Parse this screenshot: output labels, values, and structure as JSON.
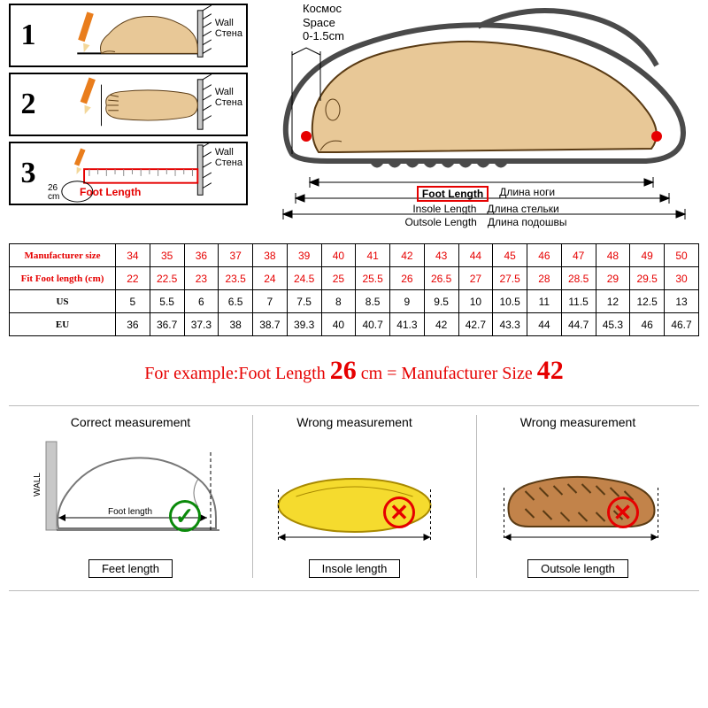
{
  "colors": {
    "red": "#e60000",
    "orange": "#e97d1c",
    "foot_fill": "#e8c897",
    "foot_stroke": "#5a3b14",
    "insole_fill": "#f5db2e",
    "insole_stroke": "#a88900",
    "outsole_fill": "#c2834a",
    "outsole_stroke": "#5a3b14",
    "wall_fill": "#c8c8c8",
    "check_green": "#0a8a0a",
    "border": "#000000"
  },
  "steps": {
    "wall_en": "Wall",
    "wall_ru": "Стена",
    "nums": [
      "1",
      "2",
      "3"
    ],
    "step3": {
      "foot_length_label": "Foot Length",
      "cm_callout": "26\ncm"
    }
  },
  "shoe_diagram": {
    "space_ru": "Космос",
    "space_en": "Space",
    "space_range": "0-1.5cm",
    "lengths": [
      {
        "en": "Foot Length",
        "ru": "Длина ноги",
        "key": "foot"
      },
      {
        "en": "Insole Length",
        "ru": "Длина стельки",
        "key": "insole"
      },
      {
        "en": "Outsole Length",
        "ru": "Длина подошвы",
        "key": "outsole"
      }
    ]
  },
  "size_table": {
    "row_labels": [
      "Manufacturer size",
      "Fit Foot length (cm)",
      "US",
      "EU"
    ],
    "red_rows": [
      0,
      1
    ],
    "columns": [
      "34",
      "35",
      "36",
      "37",
      "38",
      "39",
      "40",
      "41",
      "42",
      "43",
      "44",
      "45",
      "46",
      "47",
      "48",
      "49",
      "50"
    ],
    "rows": [
      [
        "34",
        "35",
        "36",
        "37",
        "38",
        "39",
        "40",
        "41",
        "42",
        "43",
        "44",
        "45",
        "46",
        "47",
        "48",
        "49",
        "50"
      ],
      [
        "22",
        "22.5",
        "23",
        "23.5",
        "24",
        "24.5",
        "25",
        "25.5",
        "26",
        "26.5",
        "27",
        "27.5",
        "28",
        "28.5",
        "29",
        "29.5",
        "30"
      ],
      [
        "5",
        "5.5",
        "6",
        "6.5",
        "7",
        "7.5",
        "8",
        "8.5",
        "9",
        "9.5",
        "10",
        "10.5",
        "11",
        "11.5",
        "12",
        "12.5",
        "13"
      ],
      [
        "36",
        "36.7",
        "37.3",
        "38",
        "38.7",
        "39.3",
        "40",
        "40.7",
        "41.3",
        "42",
        "42.7",
        "43.3",
        "44",
        "44.7",
        "45.3",
        "46",
        "46.7"
      ]
    ]
  },
  "example": {
    "prefix": "For example:Foot Length ",
    "val1": "26",
    "mid": " cm = Manufacturer Size ",
    "val2": "42"
  },
  "measurements": {
    "panels": [
      {
        "title": "Correct measurement",
        "caption": "Feet length",
        "mark": "ok"
      },
      {
        "title": "Wrong measurement",
        "caption": "Insole length",
        "mark": "bad"
      },
      {
        "title": "Wrong measurement",
        "caption": "Outsole length",
        "mark": "bad"
      }
    ]
  }
}
